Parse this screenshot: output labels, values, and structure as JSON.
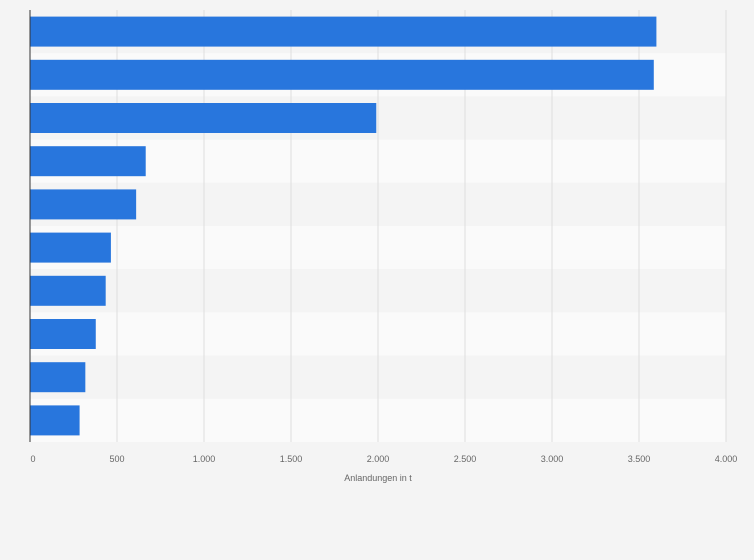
{
  "chart_data": {
    "type": "bar",
    "orientation": "horizontal",
    "categories": [
      "",
      "",
      "",
      "",
      "",
      "",
      "",
      "",
      "",
      ""
    ],
    "values": [
      3600,
      3585,
      1990,
      665,
      610,
      465,
      435,
      378,
      318,
      285
    ],
    "xlabel": "Anlandungen in t",
    "ylabel": "",
    "title": "",
    "xlim": [
      0,
      4000
    ],
    "x_ticks": [
      0,
      500,
      1000,
      1500,
      2000,
      2500,
      3000,
      3500,
      4000
    ],
    "x_tick_labels": [
      "0",
      "500",
      "1.000",
      "1.500",
      "2.000",
      "2.500",
      "3.000",
      "3.500",
      "4.000"
    ],
    "grid": true,
    "legend": "none",
    "colors": {
      "bar": "#2876dd",
      "background": "#f4f4f4",
      "row_alt": "#fafafa",
      "grid": "#dedede",
      "axis": "#333333",
      "text": "#666666"
    }
  }
}
